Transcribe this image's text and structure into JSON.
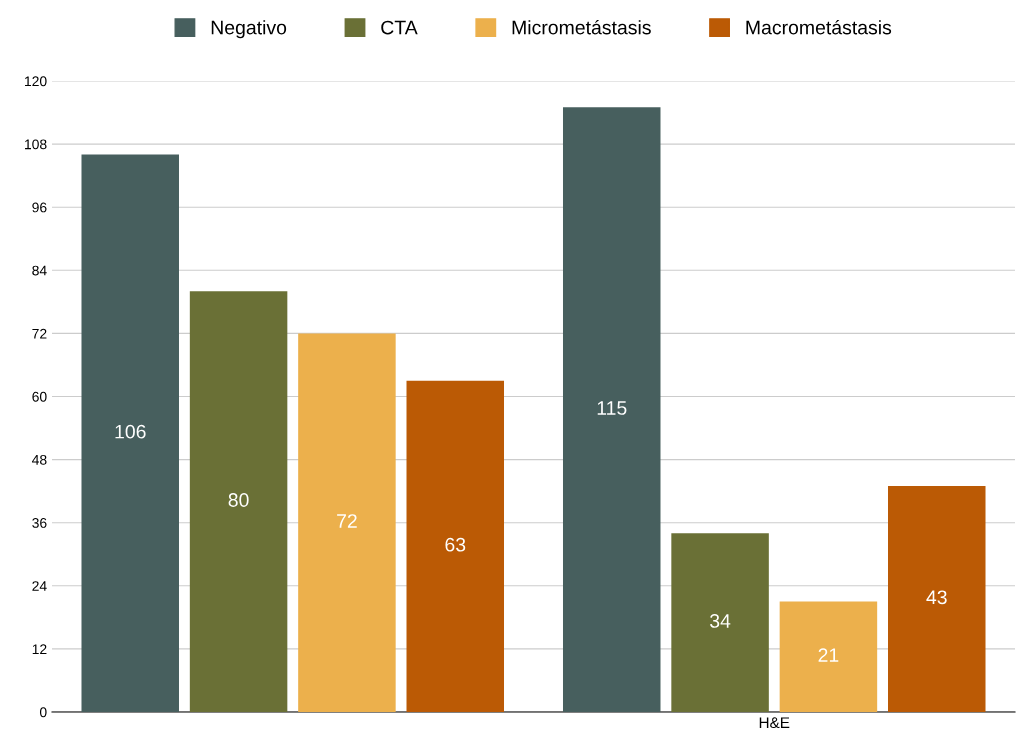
{
  "chart_data": {
    "type": "bar",
    "categories": [
      null,
      "H&E"
    ],
    "series": [
      {
        "name": "Negativo",
        "color": "#475f5e",
        "values": [
          106,
          115
        ]
      },
      {
        "name": "CTA",
        "color": "#6a7036",
        "values": [
          80,
          34
        ]
      },
      {
        "name": "Micrometástasis",
        "color": "#ecb04c",
        "values": [
          72,
          21
        ]
      },
      {
        "name": "Macrometástasis",
        "color": "#bb5a05",
        "values": [
          63,
          43
        ]
      }
    ],
    "ylim": [
      0,
      120
    ],
    "yticks": [
      0,
      12,
      24,
      36,
      48,
      60,
      72,
      84,
      96,
      108,
      120
    ],
    "grid": "y",
    "legend": "top",
    "data_labels": true
  }
}
